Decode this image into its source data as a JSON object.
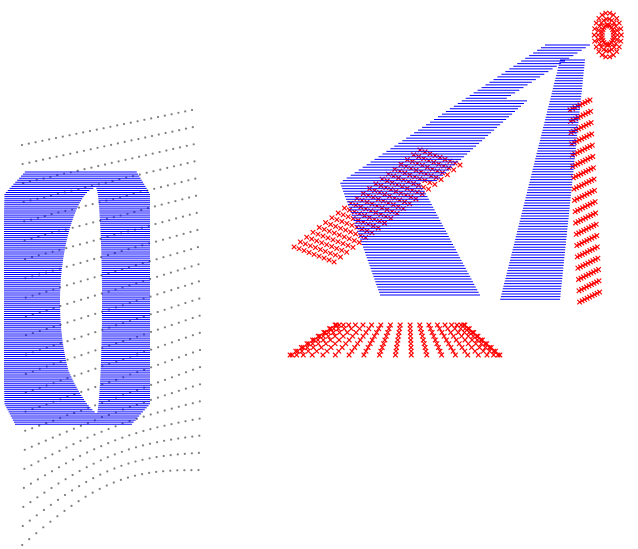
{
  "colors": {
    "background": "#ffffff",
    "grid_dots": "#808080",
    "ribbon_lines": "#0000ff",
    "cross_markers": "#ff0000"
  },
  "figures": [
    {
      "name": "left-figure",
      "elements": [
        "dot-grid",
        "blue-line-loop"
      ]
    },
    {
      "name": "right-figure",
      "elements": [
        "red-cross-cloud",
        "blue-line-twisted-loop",
        "red-cross-lobe"
      ]
    }
  ]
}
